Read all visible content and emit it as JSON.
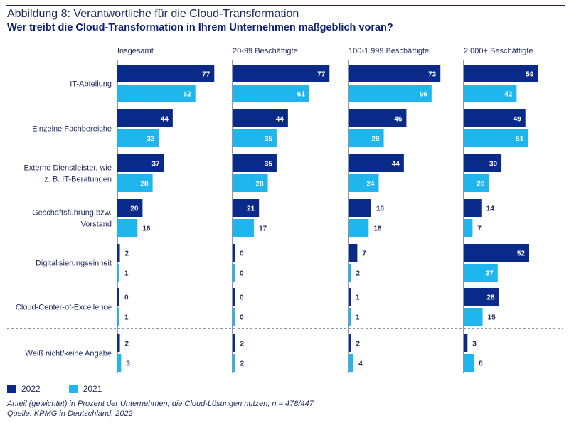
{
  "header": {
    "title": "Abbildung 8: Verantwortliche für die Cloud-Transformation",
    "subtitle": "Wer treibt die Cloud-Transformation in Ihrem Unternehmen maßgeblich voran?"
  },
  "legend": {
    "items": [
      {
        "label": "2022",
        "color": "#0a2a8a"
      },
      {
        "label": "2021",
        "color": "#1fb6ee"
      }
    ]
  },
  "footnote": {
    "line1": "Anteil (gewichtet) in Prozent der Unternehmen, die Cloud-Lösungen nutzen, n = 478/447",
    "line2": "Quelle: KPMG in Deutschland, 2022"
  },
  "chart_data": {
    "type": "bar",
    "orientation": "horizontal",
    "panels": [
      "Insgesamt",
      "20-99 Beschäftigte",
      "100-1.999 Beschäftigte",
      "2.000+ Beschäftigte"
    ],
    "categories": [
      [
        "IT-Abteilung"
      ],
      [
        "Einzelne Fachbereiche"
      ],
      [
        "Externe Dienstleister, wie",
        "z. B. IT-Beratungen"
      ],
      [
        "Geschäftsführung bzw.",
        "Vorstand"
      ],
      [
        "Digitalisierungseinheit"
      ],
      [
        "Cloud-Center-of-Excellence"
      ],
      [
        "Weiß nicht/keine Angabe"
      ]
    ],
    "series": [
      {
        "name": "2022",
        "color": "#0a2a8a",
        "values": [
          [
            77,
            44,
            37,
            20,
            2,
            0,
            2
          ],
          [
            77,
            44,
            35,
            21,
            0,
            0,
            2
          ],
          [
            73,
            46,
            44,
            18,
            7,
            1,
            2
          ],
          [
            59,
            49,
            30,
            14,
            52,
            28,
            3
          ]
        ]
      },
      {
        "name": "2021",
        "color": "#1fb6ee",
        "values": [
          [
            62,
            33,
            28,
            16,
            1,
            1,
            3
          ],
          [
            61,
            35,
            28,
            17,
            0,
            0,
            2
          ],
          [
            66,
            28,
            24,
            16,
            2,
            1,
            4
          ],
          [
            42,
            51,
            20,
            7,
            27,
            15,
            8
          ]
        ]
      }
    ],
    "xlim": [
      0,
      100
    ],
    "separator_before_category": 6
  }
}
